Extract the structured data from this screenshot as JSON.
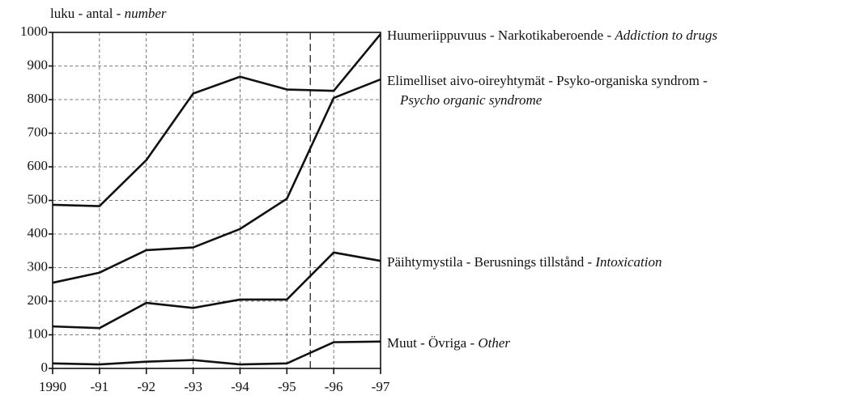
{
  "chart_data": {
    "type": "line",
    "ylabel": "luku - antal -",
    "ylabel_en": "number",
    "x": [
      1990,
      1991,
      1992,
      1993,
      1994,
      1995,
      1996,
      1997
    ],
    "xlim": [
      1990,
      1997
    ],
    "xticks": [
      1990,
      {
        "value": 1991,
        "label": "-91"
      },
      {
        "value": 1992,
        "label": "-92"
      },
      {
        "value": 1993,
        "label": "-93"
      },
      {
        "value": 1994,
        "label": "-94"
      },
      {
        "value": 1995,
        "label": "-95"
      },
      {
        "value": 1996,
        "label": "-96"
      },
      {
        "value": 1997,
        "label": "-97"
      }
    ],
    "ylim": [
      0,
      1000
    ],
    "yticks": [
      0,
      100,
      200,
      300,
      400,
      500,
      600,
      700,
      800,
      900,
      1000
    ],
    "grid": true,
    "vline_x": 1995.5,
    "series": [
      {
        "name": "Huumeriippuvuus - Narkotikaberoende -",
        "name_en": "Addiction to drugs",
        "color": "#111111",
        "values": [
          487,
          483,
          620,
          818,
          868,
          830,
          826,
          995
        ]
      },
      {
        "name": "Elimelliset aivo-oireyhtymät - Psyko-organiska syndrom -",
        "name_en": "Psycho organic syndrome",
        "color": "#111111",
        "values": [
          255,
          285,
          352,
          360,
          415,
          505,
          805,
          860
        ]
      },
      {
        "name": "Päihtymystila - Berusnings tillstånd -",
        "name_en": "Intoxication",
        "color": "#111111",
        "values": [
          125,
          120,
          195,
          180,
          205,
          205,
          345,
          320
        ]
      },
      {
        "name": "Muut - Övriga -",
        "name_en": "Other",
        "color": "#111111",
        "values": [
          15,
          12,
          20,
          25,
          12,
          15,
          78,
          80
        ]
      }
    ]
  }
}
